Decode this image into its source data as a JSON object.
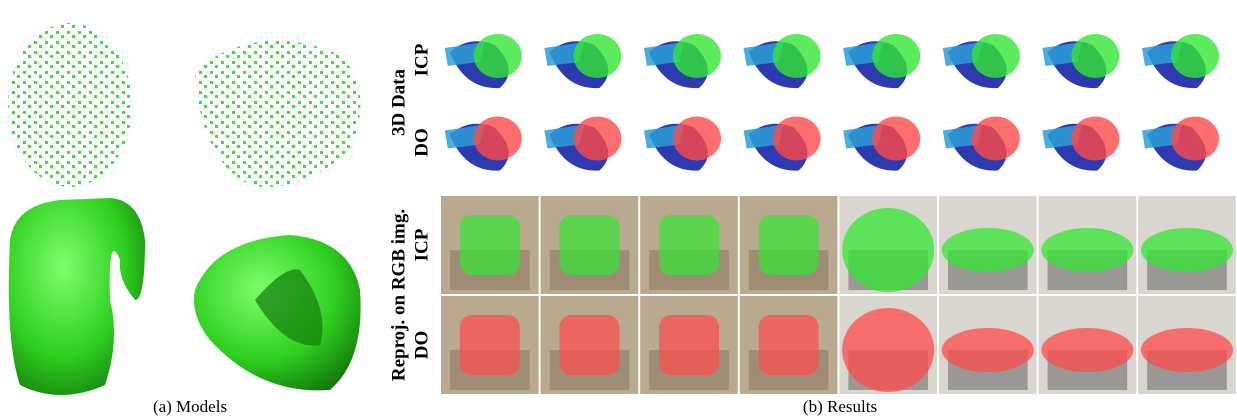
{
  "panels": {
    "models": {
      "caption": "(a) Models"
    },
    "results": {
      "caption": "(b) Results",
      "sections": [
        {
          "label": "3D Data",
          "rows": [
            "ICP",
            "DO"
          ]
        },
        {
          "label": "Reproj. on RGB img.",
          "rows": [
            "ICP",
            "DO"
          ]
        }
      ]
    }
  }
}
